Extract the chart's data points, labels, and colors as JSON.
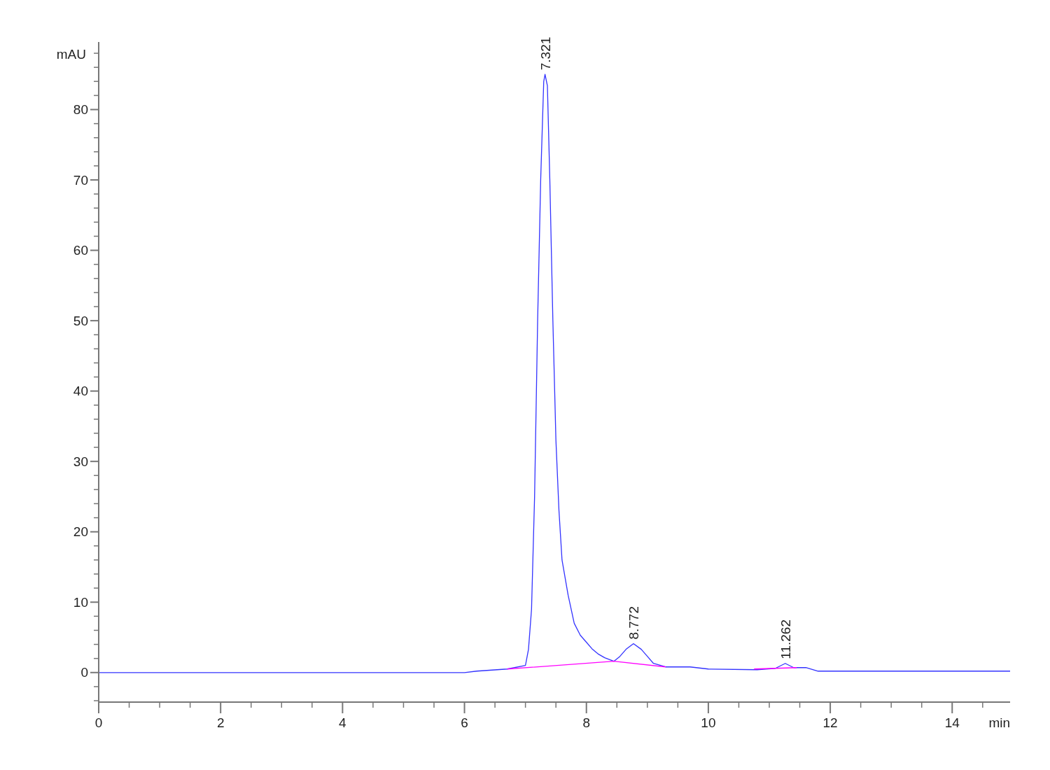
{
  "chart_data": {
    "type": "line",
    "xlabel": "min",
    "ylabel": "mAU",
    "xlim": [
      0,
      14.95
    ],
    "ylim": [
      -4.2,
      89.6
    ],
    "xticks": [
      0,
      {
        "value": 0.5,
        "label": null
      },
      2,
      {
        "value": 1,
        "label": null
      },
      {
        "value": 1.5,
        "label": null
      },
      {
        "value": 2.5,
        "label": null
      },
      {
        "value": 3,
        "label": null
      },
      {
        "value": 3.5,
        "label": null
      },
      4,
      {
        "value": 4.5,
        "label": null
      },
      {
        "value": 5,
        "label": null
      },
      {
        "value": 5.5,
        "label": null
      },
      6,
      {
        "value": 6.5,
        "label": null
      },
      {
        "value": 7,
        "label": null
      },
      {
        "value": 7.5,
        "label": null
      },
      8,
      {
        "value": 8.5,
        "label": null
      },
      {
        "value": 9,
        "label": null
      },
      {
        "value": 9.5,
        "label": null
      },
      10,
      {
        "value": 10.5,
        "label": null
      },
      {
        "value": 11,
        "label": null
      },
      {
        "value": 11.5,
        "label": null
      },
      12,
      {
        "value": 12.5,
        "label": null
      },
      {
        "value": 13,
        "label": null
      },
      {
        "value": 13.5,
        "label": null
      },
      14,
      {
        "value": 14.5,
        "label": null
      }
    ],
    "yticks": [
      {
        "value": -4,
        "label": null
      },
      {
        "value": -2,
        "label": null
      },
      0,
      {
        "value": 2,
        "label": null
      },
      {
        "value": 4,
        "label": null
      },
      {
        "value": 6,
        "label": null
      },
      {
        "value": 8,
        "label": null
      },
      10,
      {
        "value": 12,
        "label": null
      },
      {
        "value": 14,
        "label": null
      },
      {
        "value": 16,
        "label": null
      },
      {
        "value": 18,
        "label": null
      },
      20,
      {
        "value": 22,
        "label": null
      },
      {
        "value": 24,
        "label": null
      },
      {
        "value": 26,
        "label": null
      },
      {
        "value": 28,
        "label": null
      },
      30,
      {
        "value": 32,
        "label": null
      },
      {
        "value": 34,
        "label": null
      },
      {
        "value": 36,
        "label": null
      },
      {
        "value": 38,
        "label": null
      },
      40,
      {
        "value": 42,
        "label": null
      },
      {
        "value": 44,
        "label": null
      },
      {
        "value": 46,
        "label": null
      },
      {
        "value": 48,
        "label": null
      },
      50,
      {
        "value": 52,
        "label": null
      },
      {
        "value": 54,
        "label": null
      },
      {
        "value": 56,
        "label": null
      },
      {
        "value": 58,
        "label": null
      },
      60,
      {
        "value": 62,
        "label": null
      },
      {
        "value": 64,
        "label": null
      },
      {
        "value": 66,
        "label": null
      },
      {
        "value": 68,
        "label": null
      },
      70,
      {
        "value": 72,
        "label": null
      },
      {
        "value": 74,
        "label": null
      },
      {
        "value": 76,
        "label": null
      },
      {
        "value": 78,
        "label": null
      },
      80,
      {
        "value": 82,
        "label": null
      },
      {
        "value": 84,
        "label": null
      },
      {
        "value": 86,
        "label": null
      },
      {
        "value": 88,
        "label": null
      }
    ],
    "grid": false,
    "marker": "none",
    "series": [
      {
        "color": "#3333ff",
        "x": [
          0,
          2,
          4,
          6,
          6.2,
          6.7,
          7.0,
          7.05,
          7.1,
          7.15,
          7.2,
          7.25,
          7.3,
          7.321,
          7.36,
          7.4,
          7.45,
          7.5,
          7.55,
          7.6,
          7.7,
          7.8,
          7.9,
          8.0,
          8.1,
          8.2,
          8.3,
          8.45,
          8.55,
          8.65,
          8.772,
          8.9,
          9.0,
          9.1,
          9.3,
          9.7,
          10.0,
          10.8,
          11.1,
          11.262,
          11.4,
          11.6,
          11.8,
          12,
          14.95
        ],
        "values": [
          0,
          0,
          0,
          0,
          0.2,
          0.5,
          1,
          3.3,
          9,
          25,
          50,
          70,
          84,
          85,
          83.4,
          70,
          50,
          33,
          23,
          16,
          11,
          7,
          5.3,
          4.3,
          3.3,
          2.6,
          2.1,
          1.6,
          2.3,
          3.3,
          4.1,
          3.3,
          2.3,
          1.3,
          0.8,
          0.8,
          0.5,
          0.4,
          0.6,
          1.3,
          0.7,
          0.7,
          0.2,
          0.2,
          0.2
        ]
      },
      {
        "color": "#ff00ff",
        "x": [
          6.7,
          8.45,
          9.3,
          10.0,
          10.75,
          11.45
        ],
        "values": [
          0.5,
          1.6,
          0.8,
          null,
          0.5,
          0.7
        ]
      }
    ],
    "annotations": [
      {
        "text": "7.321",
        "x": 7.321,
        "y": 85
      },
      {
        "text": "8.772",
        "x": 8.772,
        "y": 4.1
      },
      {
        "text": "11.262",
        "x": 11.262,
        "y": 1.3
      }
    ]
  }
}
